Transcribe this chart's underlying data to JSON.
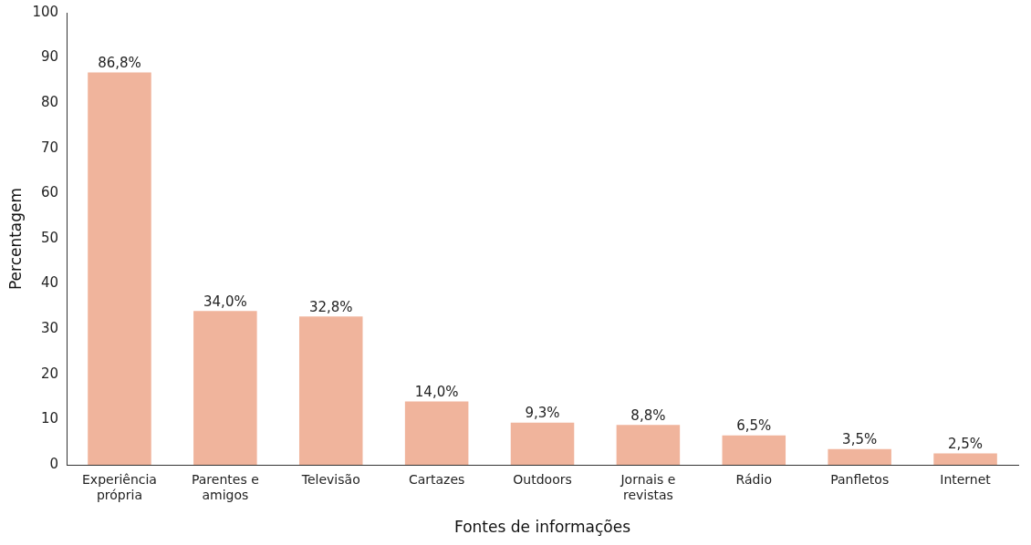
{
  "chart_data": {
    "type": "bar",
    "xlabel": "Fontes de informações",
    "ylabel": "Percentagem",
    "categories": [
      "Experiência própria",
      "Parentes e amigos",
      "Televisão",
      "Cartazes",
      "Outdoors",
      "Jornais e revistas",
      "Rádio",
      "Panfletos",
      "Internet"
    ],
    "values": [
      86.8,
      34.0,
      32.8,
      14.0,
      9.3,
      8.8,
      6.5,
      3.5,
      2.5
    ],
    "value_labels": [
      "86,8%",
      "34,0%",
      "32,8%",
      "14,0%",
      "9,3%",
      "8,8%",
      "6,5%",
      "3,5%",
      "2,5%"
    ],
    "color": "#f0b49c",
    "ylim": [
      0,
      100
    ],
    "yticks": [
      0,
      10,
      20,
      30,
      40,
      50,
      60,
      70,
      80,
      90,
      100
    ],
    "grid": false,
    "legend": false
  }
}
